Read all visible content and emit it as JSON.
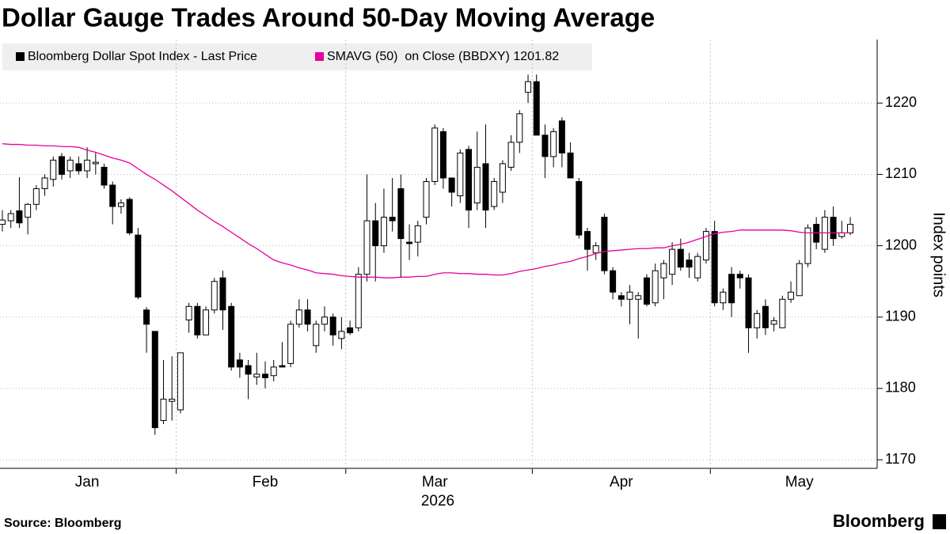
{
  "chart_data": {
    "type": "candlestick",
    "title": "Dollar Gauge Trades Around 50-Day Moving Average",
    "source": "Source: Bloomberg",
    "brand": "Bloomberg",
    "ylabel": "Index points",
    "x_sublabel": "2026",
    "categories": [
      null,
      null,
      null,
      null,
      null,
      null,
      null,
      null,
      null,
      null,
      "Jan",
      null,
      null,
      null,
      null,
      null,
      null,
      null,
      null,
      null,
      null,
      null,
      null,
      null,
      null,
      null,
      null,
      null,
      null,
      null,
      null,
      "Feb",
      null,
      null,
      null,
      null,
      null,
      null,
      null,
      null,
      null,
      null,
      null,
      null,
      null,
      null,
      null,
      null,
      null,
      null,
      null,
      "Mar",
      null,
      null,
      null,
      null,
      null,
      null,
      null,
      null,
      null,
      null,
      null,
      null,
      null,
      null,
      null,
      null,
      null,
      null,
      null,
      null,
      null,
      "Apr",
      null,
      null,
      null,
      null,
      null,
      null,
      null,
      null,
      null,
      null,
      null,
      null,
      null,
      null,
      null,
      null,
      null,
      null,
      null,
      null,
      "May",
      null,
      null,
      null,
      null,
      null,
      null
    ],
    "x_separators": [
      20.5,
      40.5,
      62.5,
      83.5
    ],
    "ylim": [
      1168.8,
      1228.9
    ],
    "yticks": [
      1170,
      1180,
      1190,
      1200,
      1210,
      1220
    ],
    "grid": true,
    "series": [
      {
        "name": "Bloomberg Dollar Spot Index - Last Price",
        "type": "candlestick",
        "color": "#000000",
        "open": [
          1203,
          1203.5,
          1204.9,
          1204,
          1205.8,
          1208,
          1209.3,
          1212.5,
          1210.5,
          1211.5,
          1210.5,
          1211.5,
          1211,
          1208.5,
          1205.5,
          1206.5,
          1201.5,
          1191,
          1188,
          1175.5,
          1178.2,
          1177,
          1189.6,
          1191.5,
          1187.5,
          1191,
          1195.5,
          1191.5,
          1184,
          1183.2,
          1181.6,
          1182,
          1181.8,
          1183.2,
          1183.5,
          1189,
          1191,
          1186,
          1189,
          1190,
          1187,
          1188.5,
          1188.5,
          1196,
          1203.5,
          1200,
          1204,
          1208,
          1200.5,
          1200.5,
          1204,
          1209,
          1216,
          1209.5,
          1207,
          1213.5,
          1206,
          1211.5,
          1205.5,
          1207.5,
          1211,
          1214.5,
          1221.5,
          1223,
          1215.5,
          1212.5,
          1217.5,
          1213,
          1209,
          1202,
          1199,
          1204,
          1196.5,
          1193,
          1192.5,
          1192.5,
          1195.5,
          1192,
          1195.5,
          1196,
          1199.5,
          1198,
          1195.5,
          1198,
          1202,
          1192,
          1196,
          1196,
          1195.5,
          1188.5,
          1191.5,
          1189,
          1188.5,
          1192.5,
          1193,
          1197.5,
          1203,
          1199.5,
          1204,
          1201.3,
          1201.8
        ],
        "high": [
          1205,
          1205,
          1209.6,
          1206,
          1208.5,
          1210,
          1212.5,
          1213,
          1212.5,
          1212.5,
          1213.8,
          1213,
          1211.5,
          1209,
          1206.5,
          1206.8,
          1202.5,
          1191.4,
          1188,
          1184,
          1184.5,
          1185,
          1192,
          1192,
          1191.5,
          1195.5,
          1196.5,
          1192,
          1185,
          1184,
          1185,
          1183.8,
          1184,
          1186.5,
          1189.5,
          1192.5,
          1192.5,
          1189.5,
          1191.5,
          1190.5,
          1190,
          1189.5,
          1197,
          1210,
          1206,
          1208,
          1209.5,
          1210,
          1203,
          1203.5,
          1209.5,
          1217,
          1216.5,
          1209.5,
          1213.5,
          1214,
          1216,
          1217,
          1209.5,
          1212,
          1215.5,
          1219,
          1224,
          1224,
          1217,
          1216.5,
          1218,
          1214.5,
          1209.5,
          1202.5,
          1200.5,
          1204.5,
          1197,
          1193.5,
          1194.5,
          1193.5,
          1196,
          1197.5,
          1198,
          1200.5,
          1201,
          1199,
          1199,
          1202.5,
          1203.5,
          1194,
          1197,
          1196.5,
          1196,
          1191,
          1192.5,
          1190,
          1193,
          1195,
          1198,
          1203,
          1204,
          1205,
          1205.5,
          1203.5,
          1204
        ],
        "low": [
          1202,
          1202.5,
          1202.5,
          1201.6,
          1205,
          1207,
          1208.3,
          1209.3,
          1209.5,
          1210,
          1209.5,
          1210,
          1208,
          1203,
          1204.5,
          1201.5,
          1192.5,
          1185,
          1173.5,
          1175,
          1175.5,
          1176.5,
          1187.8,
          1187,
          1187.5,
          1190.5,
          1188.2,
          1182.5,
          1181.5,
          1178.5,
          1180.5,
          1180,
          1181,
          1183,
          1183,
          1188.5,
          1188,
          1185,
          1188,
          1186,
          1185.5,
          1187.5,
          1188,
          1195,
          1195,
          1199,
          1202,
          1195.5,
          1198,
          1198.5,
          1203,
          1208.5,
          1208,
          1205.5,
          1206,
          1202.5,
          1205,
          1202.5,
          1205,
          1206,
          1210.5,
          1213,
          1220,
          1215.5,
          1209.5,
          1211,
          1211,
          1209.5,
          1201,
          1196.5,
          1198,
          1196,
          1192.5,
          1191.5,
          1189,
          1187,
          1191.5,
          1191.5,
          1192.5,
          1194.5,
          1196.5,
          1195.5,
          1195,
          1197.5,
          1191.5,
          1191,
          1190,
          1194,
          1185,
          1187,
          1187.5,
          1188,
          1188.5,
          1192,
          1193,
          1197,
          1199.5,
          1199,
          1200,
          1201,
          1201.5
        ],
        "close": [
          1203.6,
          1204.5,
          1203.2,
          1205.8,
          1208,
          1209.5,
          1212,
          1210,
          1212,
          1210.5,
          1212,
          1211.7,
          1208.5,
          1205.5,
          1206,
          1201.8,
          1192.8,
          1189,
          1174.5,
          1178.5,
          1178.5,
          1185,
          1191.5,
          1187.5,
          1191,
          1195,
          1191,
          1183,
          1183,
          1182,
          1182,
          1181.5,
          1183,
          1183,
          1189,
          1191,
          1189,
          1189,
          1190,
          1187.5,
          1188,
          1187.8,
          1196,
          1203.5,
          1200,
          1204,
          1203.5,
          1201,
          1200.3,
          1202.8,
          1209,
          1216.5,
          1209.5,
          1207.5,
          1213,
          1205,
          1211,
          1205,
          1209,
          1211.5,
          1214.5,
          1218.5,
          1223,
          1215.5,
          1212.5,
          1216,
          1213,
          1209.5,
          1201.5,
          1199.5,
          1200,
          1196.5,
          1193.5,
          1192.5,
          1193.5,
          1193,
          1191.8,
          1196.5,
          1197.5,
          1199.5,
          1197,
          1197,
          1198.5,
          1202,
          1192,
          1193.5,
          1192,
          1195.5,
          1188.5,
          1190.5,
          1188.5,
          1189.5,
          1192.5,
          1193.5,
          1197.5,
          1202.5,
          1200.5,
          1204,
          1201,
          1201.8,
          1203
        ]
      },
      {
        "name": "SMAVG (50)  on Close (BBDXY) 1201.82",
        "type": "line",
        "color": "#e6009a",
        "values": [
          1214.3,
          1214.2,
          1214.2,
          1214.1,
          1214.1,
          1214.0,
          1214.0,
          1213.9,
          1213.9,
          1213.8,
          1213.4,
          1213.1,
          1212.7,
          1212.3,
          1212.0,
          1211.6,
          1210.8,
          1210.0,
          1209.3,
          1208.5,
          1207.7,
          1206.8,
          1205.9,
          1205.0,
          1204.2,
          1203.4,
          1202.7,
          1201.9,
          1201.1,
          1200.3,
          1199.6,
          1198.8,
          1198.0,
          1197.6,
          1197.3,
          1196.9,
          1196.6,
          1196.2,
          1196.1,
          1196.0,
          1195.8,
          1195.7,
          1195.6,
          1195.6,
          1195.6,
          1195.5,
          1195.5,
          1195.6,
          1195.6,
          1195.7,
          1195.7,
          1196.0,
          1196.2,
          1196.2,
          1196.1,
          1196.1,
          1196.0,
          1196.0,
          1195.9,
          1195.9,
          1196.1,
          1196.4,
          1196.6,
          1196.8,
          1197.1,
          1197.3,
          1197.6,
          1197.8,
          1198.2,
          1198.5,
          1198.9,
          1199.2,
          1199.3,
          1199.4,
          1199.5,
          1199.6,
          1199.6,
          1199.7,
          1199.7,
          1200.0,
          1200.2,
          1200.5,
          1200.9,
          1201.3,
          1201.7,
          1201.9,
          1202.0,
          1202.2,
          1202.2,
          1202.2,
          1202.2,
          1202.2,
          1202.2,
          1202.1,
          1201.9,
          1201.8,
          1201.8,
          1201.8,
          1201.8,
          1201.8,
          1201.82
        ]
      }
    ]
  }
}
